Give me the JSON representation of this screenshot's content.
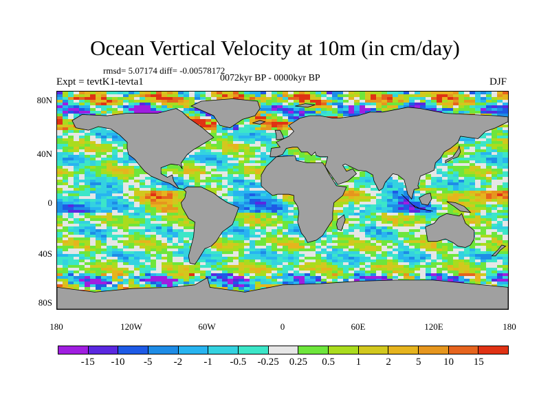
{
  "title": "Ocean Vertical Velocity at 10m (in cm/day)",
  "stats": "rmsd= 5.07174 diff= -0.00578172",
  "period": "0072kyr BP - 0000kyr BP",
  "experiment": "Expt = tevtK1-tevta1",
  "season": "DJF",
  "lat_labels": [
    "80N",
    "40N",
    "0",
    "40S",
    "80S"
  ],
  "lon_labels": [
    "180",
    "120W",
    "60W",
    "0",
    "60E",
    "120E",
    "180"
  ],
  "colorbar": {
    "colors": [
      "#a01ee0",
      "#5a28e0",
      "#1e5ae6",
      "#1e8ce6",
      "#28b4f0",
      "#34d2e0",
      "#3ce6c8",
      "#e6e6e6",
      "#6ee63c",
      "#aadc1e",
      "#d2c81e",
      "#e6b41e",
      "#e6961e",
      "#e6641e",
      "#e03214"
    ],
    "labels": [
      "-15",
      "-10",
      "-5",
      "-2",
      "-1",
      "-0.5",
      "-0.25",
      "0.25",
      "0.5",
      "1",
      "2",
      "5",
      "10",
      "15"
    ]
  },
  "land_color": "#a0a0a0"
}
